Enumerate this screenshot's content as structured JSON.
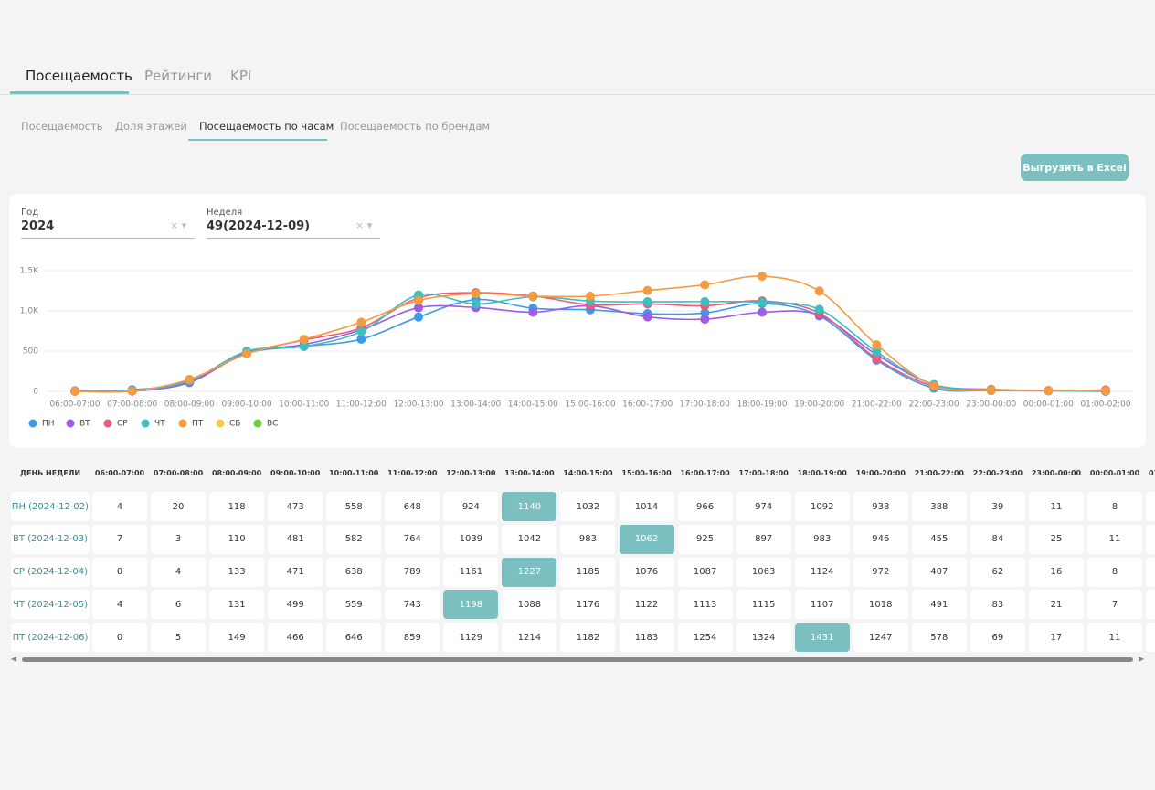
{
  "tabs": [
    "Посещаемость",
    "Рейтинги",
    "KPI"
  ],
  "subtabs": [
    "Посещаемость",
    "Доля этажей",
    "Посещаемость по часам",
    "Посещаемость по брендам"
  ],
  "export_button": "Выгрузить в Excel",
  "filters": [
    {
      "label": "Год",
      "value": "2024"
    },
    {
      "label": "Неделя",
      "value": "49(2024-12-09)"
    }
  ],
  "chart_data": {
    "type": "line",
    "categories": [
      "06:00-07:00",
      "07:00-08:00",
      "08:00-09:00",
      "09:00-10:00",
      "10:00-11:00",
      "11:00-12:00",
      "12:00-13:00",
      "13:00-14:00",
      "14:00-15:00",
      "15:00-16:00",
      "16:00-17:00",
      "17:00-18:00",
      "18:00-19:00",
      "19:00-20:00",
      "21:00-22:00",
      "22:00-23:00",
      "23:00-00:00",
      "00:00-01:00",
      "01:00-02:00"
    ],
    "ylim": [
      0,
      1500
    ],
    "yticks": [
      0,
      500,
      {
        "value": 1000,
        "label": "1,0K"
      },
      {
        "value": 1500,
        "label": "1,5K"
      }
    ],
    "grid": true,
    "series": [
      {
        "name": "ПН",
        "color": "#3b9be8",
        "values": [
          4,
          20,
          118,
          473,
          558,
          648,
          924,
          1140,
          1032,
          1014,
          966,
          974,
          1092,
          938,
          388,
          39,
          11,
          8,
          8
        ]
      },
      {
        "name": "ВТ",
        "color": "#9b5de5",
        "values": [
          7,
          3,
          110,
          481,
          582,
          764,
          1039,
          1042,
          983,
          1062,
          925,
          897,
          983,
          946,
          455,
          84,
          25,
          11,
          0
        ]
      },
      {
        "name": "СР",
        "color": "#ee5a7a",
        "values": [
          0,
          4,
          133,
          471,
          638,
          789,
          1161,
          1227,
          1185,
          1076,
          1087,
          1063,
          1124,
          972,
          407,
          62,
          16,
          8,
          18
        ]
      },
      {
        "name": "ЧТ",
        "color": "#3cbfbf",
        "values": [
          4,
          6,
          131,
          499,
          559,
          743,
          1198,
          1088,
          1176,
          1122,
          1113,
          1115,
          1107,
          1018,
          491,
          83,
          21,
          7,
          0
        ]
      },
      {
        "name": "ПТ",
        "color": "#f59b3f",
        "values": [
          0,
          5,
          149,
          466,
          646,
          859,
          1129,
          1214,
          1182,
          1183,
          1254,
          1324,
          1431,
          1247,
          578,
          69,
          17,
          11,
          8
        ]
      },
      {
        "name": "СБ",
        "color": "#f7c948",
        "values": [
          null,
          null,
          null,
          null,
          null,
          null,
          null,
          null,
          null,
          null,
          null,
          null,
          null,
          null,
          null,
          null,
          null,
          null,
          null
        ]
      },
      {
        "name": "ВС",
        "color": "#6fcf3a",
        "values": [
          null,
          null,
          null,
          null,
          null,
          null,
          null,
          null,
          null,
          null,
          null,
          null,
          null,
          null,
          null,
          null,
          null,
          null,
          null
        ]
      }
    ]
  },
  "table": {
    "header": "ДЕНЬ НЕДЕЛИ",
    "row_labels": [
      "ПН (2024-12-02)",
      "ВТ (2024-12-03)",
      "СР (2024-12-04)",
      "ЧТ (2024-12-05)",
      "ПТ (2024-12-06)"
    ]
  }
}
